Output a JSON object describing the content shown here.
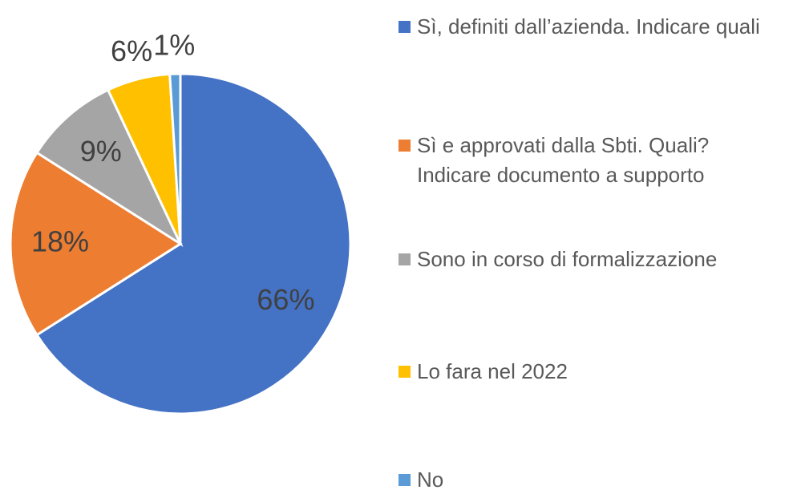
{
  "chart_data": {
    "type": "pie",
    "categories": [
      "Sì, definiti dall’azienda. Indicare quali",
      "Sì e approvati dalla Sbti. Quali? Indicare documento a supporto",
      "Sono in corso di formalizzazione",
      "Lo fara nel 2022",
      "No"
    ],
    "values": [
      66,
      18,
      9,
      6,
      1
    ],
    "value_labels": [
      "66%",
      "18%",
      "9%",
      "6%",
      "1%"
    ],
    "colors": [
      "#4472c4",
      "#ed7d31",
      "#a5a5a5",
      "#ffc000",
      "#5b9bd5"
    ],
    "legend": "right"
  }
}
